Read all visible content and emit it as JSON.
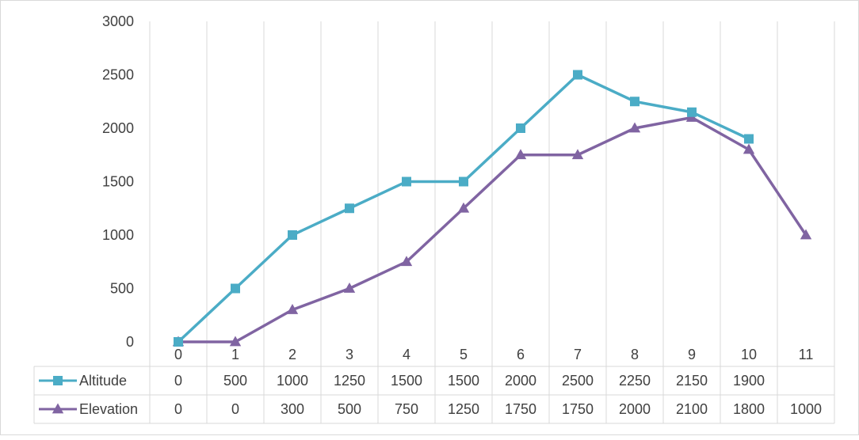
{
  "chart_data": {
    "type": "line",
    "categories": [
      "0",
      "1",
      "2",
      "3",
      "4",
      "5",
      "6",
      "7",
      "8",
      "9",
      "10",
      "11"
    ],
    "series": [
      {
        "name": "Altitude",
        "color": "#4bacc6",
        "marker": "square",
        "values": [
          0,
          500,
          1000,
          1250,
          1500,
          1500,
          2000,
          2500,
          2250,
          2150,
          1900,
          null
        ],
        "table_values": [
          "0",
          "500",
          "1000",
          "1250",
          "1500",
          "1500",
          "2000",
          "2500",
          "2250",
          "2150",
          "1900",
          ""
        ]
      },
      {
        "name": "Elevation",
        "color": "#8064a2",
        "marker": "triangle",
        "values": [
          0,
          0,
          300,
          500,
          750,
          1250,
          1750,
          1750,
          2000,
          2100,
          1800,
          1000
        ],
        "table_values": [
          "0",
          "0",
          "300",
          "500",
          "750",
          "1250",
          "1750",
          "1750",
          "2000",
          "2100",
          "1800",
          "1000"
        ]
      }
    ],
    "ylim": [
      0,
      3000
    ],
    "yticks": [
      "0",
      "500",
      "1000",
      "1500",
      "2000",
      "2500",
      "3000"
    ],
    "title": "",
    "xlabel": "",
    "ylabel": "",
    "grid": "vertical",
    "legend": "data-table",
    "colors": {
      "grid": "#d9d9d9",
      "text": "#404040"
    }
  }
}
